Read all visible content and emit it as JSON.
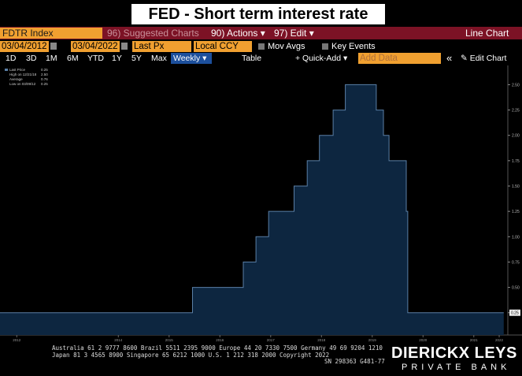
{
  "header": {
    "title": "FED - Short term interest rate"
  },
  "toolbar": {
    "ticker": "FDTR Index",
    "menu": [
      "96) Suggested Charts",
      "90) Actions ▾",
      "97) Edit ▾"
    ],
    "view": "Line Chart",
    "start_date": "03/04/2012",
    "end_date": "03/04/2022",
    "field": "Last Px",
    "currency": "Local CCY",
    "options": [
      "Mov Avgs",
      "Key Events"
    ],
    "periods": [
      "1D",
      "3D",
      "1M",
      "6M",
      "YTD",
      "1Y",
      "5Y",
      "Max"
    ],
    "frequency": "Weekly ▾",
    "table": "Table",
    "quick_add": "+ Quick-Add ▾",
    "add_data": "Add Data",
    "collapse": "«",
    "edit_chart": "✎ Edit Chart"
  },
  "chart_data": {
    "type": "step-area",
    "x": [
      2012.17,
      2015.96,
      2016.96,
      2017.21,
      2017.46,
      2017.96,
      2018.22,
      2018.46,
      2018.73,
      2018.97,
      2019.58,
      2019.72,
      2019.83,
      2020.17,
      2020.2,
      2022.09
    ],
    "series": [
      {
        "name": "Last Price",
        "color": "#0d2640",
        "line_color": "#5a7fa6",
        "values": [
          0.25,
          0.5,
          0.75,
          1.0,
          1.25,
          1.5,
          1.75,
          2.0,
          2.25,
          2.5,
          2.25,
          2.0,
          1.75,
          1.25,
          0.25,
          0.25
        ]
      }
    ],
    "stats": [
      {
        "label": "High on 12/21/18",
        "value": "2.50"
      },
      {
        "label": "Average",
        "value": "0.76"
      },
      {
        "label": "Low on 03/09/12",
        "value": "0.25"
      }
    ],
    "last_value": "0.25",
    "xlim": [
      2012.17,
      2022.17
    ],
    "xticks": [
      {
        "value": 2012.5,
        "label": "2012"
      },
      {
        "value": 2014.5,
        "label": "2014"
      },
      {
        "value": 2015.5,
        "label": "2015"
      },
      {
        "value": 2016.5,
        "label": "2016"
      },
      {
        "value": 2017.5,
        "label": "2017"
      },
      {
        "value": 2018.5,
        "label": "2018"
      },
      {
        "value": 2019.5,
        "label": "2019"
      },
      {
        "value": 2020.5,
        "label": "2020"
      },
      {
        "value": 2021.5,
        "label": "2021"
      },
      {
        "value": 2022.0,
        "label": "2022"
      }
    ],
    "ylim": [
      0.03,
      2.69
    ],
    "yticks": [
      0.25,
      {
        "value": 0.5,
        "label": "0.50"
      },
      0.75,
      {
        "value": 1.0,
        "label": "1.00"
      },
      1.25,
      {
        "value": 1.5,
        "label": "1.50"
      },
      1.75,
      {
        "value": 2.0,
        "label": "2.00"
      },
      2.25,
      {
        "value": 2.5,
        "label": "2.50"
      }
    ]
  },
  "footer": {
    "line1": "Australia 61 2 9777 8600 Brazil 5511 2395 9000 Europe 44 20 7330 7500 Germany 49 69 9204 1210",
    "line2": "Japan 81 3 4565 8900      Singapore 65 6212 1000      U.S. 1 212 318 2000      Copyright 2022",
    "line3": "SN 298363 G481-77",
    "logo": "DIERICKX LEYS",
    "logo_sub": "PRIVATE BANK"
  }
}
